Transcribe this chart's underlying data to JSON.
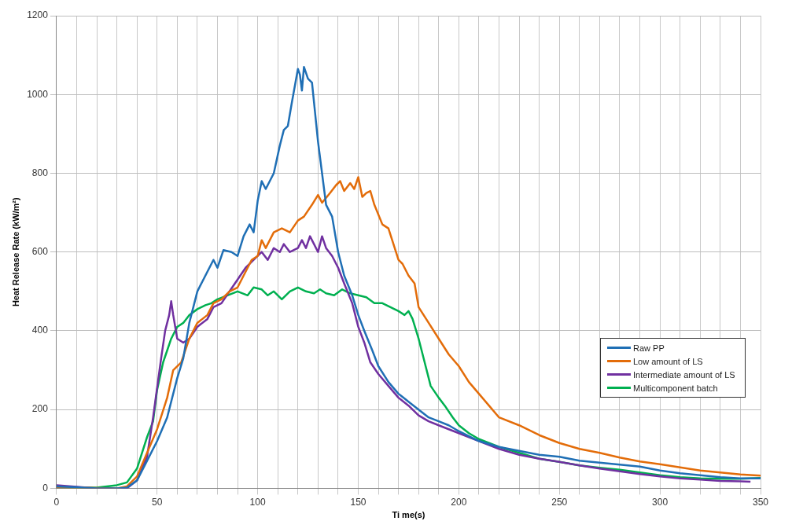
{
  "chart_data": {
    "type": "line",
    "xlabel": "Ti me(s)",
    "ylabel": "Heat Release Rate (kW/m²)",
    "xlim": [
      0,
      350
    ],
    "ylim": [
      0,
      1200
    ],
    "xticks": [
      0,
      {
        "value": 10,
        "label": null
      },
      {
        "value": 20,
        "label": null
      },
      {
        "value": 30,
        "label": null
      },
      {
        "value": 40,
        "label": null
      },
      50,
      {
        "value": 60,
        "label": null
      },
      {
        "value": 70,
        "label": null
      },
      {
        "value": 80,
        "label": null
      },
      {
        "value": 90,
        "label": null
      },
      100,
      {
        "value": 110,
        "label": null
      },
      {
        "value": 120,
        "label": null
      },
      {
        "value": 130,
        "label": null
      },
      {
        "value": 140,
        "label": null
      },
      150,
      {
        "value": 160,
        "label": null
      },
      {
        "value": 170,
        "label": null
      },
      {
        "value": 180,
        "label": null
      },
      {
        "value": 190,
        "label": null
      },
      200,
      {
        "value": 210,
        "label": null
      },
      {
        "value": 220,
        "label": null
      },
      {
        "value": 230,
        "label": null
      },
      {
        "value": 240,
        "label": null
      },
      250,
      {
        "value": 260,
        "label": null
      },
      {
        "value": 270,
        "label": null
      },
      {
        "value": 280,
        "label": null
      },
      {
        "value": 290,
        "label": null
      },
      300,
      {
        "value": 310,
        "label": null
      },
      {
        "value": 320,
        "label": null
      },
      {
        "value": 330,
        "label": null
      },
      {
        "value": 340,
        "label": null
      },
      350
    ],
    "yticks": [
      0,
      200,
      400,
      600,
      800,
      1000,
      1200
    ],
    "grid": true,
    "legend": "right",
    "marker": "none",
    "line_style": "solid",
    "series": [
      {
        "name": "Raw PP",
        "color": "#1f6fb5",
        "x": [
          0,
          10,
          20,
          30,
          35,
          40,
          45,
          50,
          55,
          60,
          63,
          66,
          70,
          75,
          78,
          80,
          83,
          87,
          90,
          93,
          96,
          98,
          100,
          102,
          104,
          108,
          111,
          113,
          115,
          117,
          120,
          121,
          122,
          123,
          125,
          127,
          130,
          132,
          134,
          137,
          140,
          143,
          147,
          150,
          153,
          157,
          160,
          165,
          170,
          175,
          180,
          185,
          190,
          195,
          200,
          210,
          220,
          230,
          240,
          250,
          260,
          270,
          280,
          290,
          300,
          310,
          320,
          330,
          340,
          350
        ],
        "values": [
          5,
          3,
          0,
          0,
          2,
          20,
          70,
          120,
          180,
          280,
          330,
          420,
          500,
          550,
          580,
          560,
          605,
          600,
          590,
          640,
          670,
          650,
          730,
          780,
          760,
          800,
          870,
          910,
          920,
          980,
          1065,
          1050,
          1010,
          1070,
          1040,
          1030,
          880,
          800,
          720,
          690,
          600,
          540,
          490,
          440,
          400,
          350,
          310,
          270,
          240,
          220,
          200,
          180,
          170,
          160,
          145,
          120,
          105,
          95,
          85,
          80,
          70,
          65,
          60,
          55,
          45,
          38,
          33,
          28,
          25,
          25
        ]
      },
      {
        "name": "Low amount of LS",
        "color": "#e36c09",
        "x": [
          0,
          30,
          35,
          40,
          45,
          50,
          55,
          58,
          62,
          66,
          70,
          75,
          78,
          82,
          86,
          90,
          94,
          97,
          100,
          102,
          104,
          108,
          112,
          116,
          120,
          123,
          127,
          130,
          132,
          136,
          139,
          141,
          143,
          146,
          148,
          150,
          152,
          154,
          156,
          158,
          162,
          165,
          170,
          172,
          175,
          178,
          180,
          185,
          190,
          195,
          200,
          205,
          210,
          215,
          220,
          230,
          240,
          250,
          260,
          270,
          280,
          290,
          300,
          310,
          320,
          330,
          340,
          350
        ],
        "values": [
          3,
          0,
          5,
          30,
          90,
          150,
          230,
          300,
          320,
          380,
          420,
          440,
          470,
          480,
          500,
          510,
          550,
          580,
          590,
          630,
          610,
          650,
          660,
          650,
          680,
          690,
          720,
          745,
          725,
          750,
          770,
          780,
          755,
          775,
          760,
          790,
          740,
          750,
          755,
          720,
          670,
          660,
          580,
          570,
          540,
          520,
          460,
          420,
          380,
          340,
          310,
          270,
          240,
          210,
          180,
          160,
          135,
          115,
          100,
          90,
          78,
          68,
          61,
          53,
          45,
          40,
          35,
          32
        ]
      },
      {
        "name": "Intermediate amount of LS",
        "color": "#7030a0",
        "x": [
          0,
          20,
          35,
          40,
          45,
          48,
          52,
          54,
          56,
          57,
          58,
          60,
          63,
          66,
          70,
          75,
          78,
          82,
          86,
          90,
          94,
          98,
          102,
          105,
          108,
          111,
          113,
          116,
          120,
          122,
          124,
          126,
          128,
          130,
          132,
          134,
          137,
          140,
          143,
          147,
          150,
          153,
          156,
          160,
          165,
          170,
          175,
          180,
          185,
          190,
          200,
          210,
          220,
          230,
          240,
          250,
          260,
          270,
          280,
          290,
          300,
          310,
          320,
          330,
          340,
          345
        ],
        "values": [
          8,
          0,
          0,
          20,
          80,
          180,
          330,
          400,
          440,
          475,
          440,
          380,
          370,
          380,
          410,
          430,
          460,
          470,
          500,
          530,
          560,
          580,
          600,
          580,
          610,
          600,
          620,
          600,
          610,
          630,
          610,
          640,
          620,
          600,
          640,
          610,
          590,
          560,
          520,
          470,
          410,
          370,
          320,
          290,
          260,
          230,
          210,
          185,
          170,
          160,
          140,
          120,
          100,
          85,
          75,
          67,
          58,
          50,
          43,
          36,
          30,
          25,
          22,
          19,
          18,
          17
        ]
      },
      {
        "name": "Multicomponent batch",
        "color": "#00b050",
        "x": [
          0,
          20,
          30,
          35,
          40,
          45,
          48,
          50,
          53,
          55,
          57,
          60,
          63,
          66,
          70,
          74,
          77,
          80,
          85,
          90,
          95,
          98,
          102,
          105,
          108,
          112,
          116,
          120,
          124,
          128,
          131,
          134,
          138,
          142,
          146,
          150,
          154,
          158,
          162,
          166,
          170,
          173,
          175,
          177,
          180,
          183,
          186,
          190,
          193,
          197,
          200,
          205,
          210,
          220,
          230,
          240,
          250,
          260,
          270,
          280,
          290,
          300,
          310,
          320,
          330,
          340,
          350
        ],
        "values": [
          3,
          2,
          8,
          15,
          50,
          130,
          170,
          250,
          320,
          350,
          380,
          410,
          420,
          440,
          455,
          465,
          470,
          480,
          490,
          500,
          490,
          510,
          505,
          490,
          500,
          480,
          500,
          510,
          500,
          495,
          505,
          495,
          490,
          505,
          495,
          490,
          485,
          470,
          470,
          460,
          450,
          440,
          450,
          430,
          380,
          320,
          260,
          230,
          210,
          180,
          160,
          140,
          125,
          105,
          90,
          75,
          67,
          58,
          52,
          47,
          40,
          33,
          28,
          25,
          24,
          24,
          26
        ]
      }
    ]
  }
}
